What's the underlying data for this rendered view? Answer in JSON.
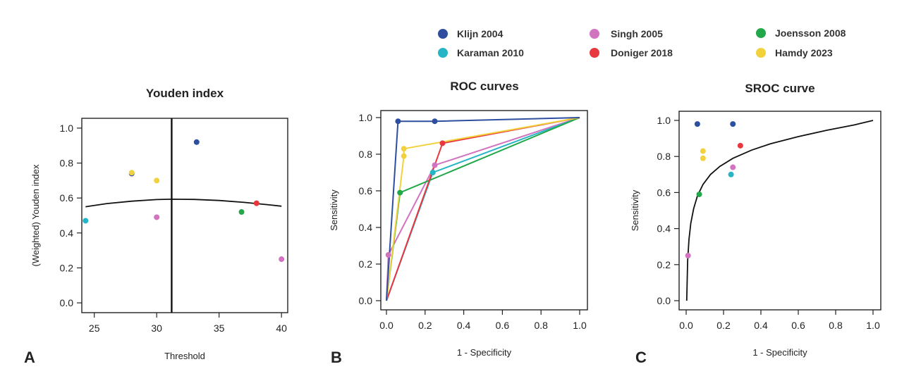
{
  "legend": [
    {
      "name": "Klijn 2004",
      "color": "#2e4ea0"
    },
    {
      "name": "Karaman 2010",
      "color": "#26b5c5"
    },
    {
      "name": "Singh 2005",
      "color": "#d173c0"
    },
    {
      "name": "Doniger 2018",
      "color": "#e8383f"
    },
    {
      "name": "Joensson 2008",
      "color": "#22a84a"
    },
    {
      "name": "Hamdy 2023",
      "color": "#f2d23c"
    }
  ],
  "chart_data": [
    {
      "panel": "A",
      "type": "scatter",
      "title": "Youden index",
      "xlabel": "Threshold",
      "ylabel": "(Weighted) Youden index",
      "xlim": [
        24,
        40.5
      ],
      "ylim": [
        -0.04,
        1.04
      ],
      "xticks": [
        25,
        30,
        35,
        40
      ],
      "yticks": [
        0.0,
        0.2,
        0.4,
        0.6,
        0.8,
        1.0
      ],
      "points": [
        {
          "study": "Klijn 2004",
          "x": 28,
          "y": 0.74
        },
        {
          "study": "Klijn 2004",
          "x": 33.2,
          "y": 0.92
        },
        {
          "study": "Karaman 2010",
          "x": 24.3,
          "y": 0.47
        },
        {
          "study": "Singh 2005",
          "x": 30,
          "y": 0.49
        },
        {
          "study": "Singh 2005",
          "x": 40,
          "y": 0.25
        },
        {
          "study": "Doniger 2018",
          "x": 38,
          "y": 0.57
        },
        {
          "study": "Joensson 2008",
          "x": 36.8,
          "y": 0.52
        },
        {
          "study": "Hamdy 2023",
          "x": 28,
          "y": 0.745
        },
        {
          "study": "Hamdy 2023",
          "x": 30,
          "y": 0.7
        }
      ],
      "fitted_curve": {
        "x": [
          24.3,
          26,
          28,
          30,
          31.2,
          33,
          35,
          37,
          39,
          40
        ],
        "y": [
          0.55,
          0.568,
          0.582,
          0.591,
          0.593,
          0.592,
          0.586,
          0.575,
          0.561,
          0.553
        ]
      },
      "optimal_threshold": 31.2
    },
    {
      "panel": "B",
      "type": "line",
      "title": "ROC curves",
      "xlabel": "1 - Specificity",
      "ylabel": "Sensitivity",
      "xlim": [
        0,
        1
      ],
      "ylim": [
        0,
        1
      ],
      "xticks": [
        0.0,
        0.2,
        0.4,
        0.6,
        0.8,
        1.0
      ],
      "yticks": [
        0.0,
        0.2,
        0.4,
        0.6,
        0.8,
        1.0
      ],
      "series": [
        {
          "name": "Singh 2005",
          "x": [
            0,
            0.01,
            0.25,
            1
          ],
          "y": [
            0,
            0.25,
            0.74,
            1
          ],
          "markers": [
            [
              0.01,
              0.25
            ],
            [
              0.25,
              0.74
            ]
          ]
        },
        {
          "name": "Karaman 2010",
          "x": [
            0,
            0.24,
            1
          ],
          "y": [
            0,
            0.7,
            1
          ],
          "markers": [
            [
              0.24,
              0.7
            ]
          ]
        },
        {
          "name": "Joensson 2008",
          "x": [
            0,
            0.07,
            1
          ],
          "y": [
            0,
            0.59,
            1
          ],
          "markers": [
            [
              0.07,
              0.59
            ]
          ]
        },
        {
          "name": "Doniger 2018",
          "x": [
            0,
            0.29,
            1
          ],
          "y": [
            0,
            0.86,
            1
          ],
          "markers": [
            [
              0.29,
              0.86
            ]
          ]
        },
        {
          "name": "Hamdy 2023",
          "x": [
            0,
            0.09,
            0.09,
            1
          ],
          "y": [
            0,
            0.79,
            0.83,
            1
          ],
          "markers": [
            [
              0.09,
              0.79
            ],
            [
              0.09,
              0.83
            ]
          ]
        },
        {
          "name": "Klijn 2004",
          "x": [
            0,
            0.06,
            0.25,
            1
          ],
          "y": [
            0,
            0.98,
            0.98,
            1
          ],
          "markers": [
            [
              0.06,
              0.98
            ],
            [
              0.25,
              0.98
            ]
          ]
        }
      ]
    },
    {
      "panel": "C",
      "type": "scatter",
      "title": "SROC curve",
      "xlabel": "1 - Specificity",
      "ylabel": "Sensitivity",
      "xlim": [
        0,
        1
      ],
      "ylim": [
        0,
        1
      ],
      "xticks": [
        0.0,
        0.2,
        0.4,
        0.6,
        0.8,
        1.0
      ],
      "yticks": [
        0.0,
        0.2,
        0.4,
        0.6,
        0.8,
        1.0
      ],
      "points": [
        {
          "study": "Klijn 2004",
          "x": 0.06,
          "y": 0.98
        },
        {
          "study": "Klijn 2004",
          "x": 0.25,
          "y": 0.98
        },
        {
          "study": "Karaman 2010",
          "x": 0.24,
          "y": 0.7
        },
        {
          "study": "Singh 2005",
          "x": 0.01,
          "y": 0.25
        },
        {
          "study": "Singh 2005",
          "x": 0.25,
          "y": 0.74
        },
        {
          "study": "Doniger 2018",
          "x": 0.29,
          "y": 0.86
        },
        {
          "study": "Joensson 2008",
          "x": 0.07,
          "y": 0.59
        },
        {
          "study": "Hamdy 2023",
          "x": 0.09,
          "y": 0.79
        },
        {
          "study": "Hamdy 2023",
          "x": 0.09,
          "y": 0.83
        }
      ],
      "sroc_curve": {
        "x": [
          0.003,
          0.008,
          0.015,
          0.025,
          0.04,
          0.06,
          0.09,
          0.13,
          0.18,
          0.25,
          0.35,
          0.45,
          0.6,
          0.75,
          0.9,
          1.0
        ],
        "y": [
          0.0,
          0.22,
          0.34,
          0.43,
          0.51,
          0.58,
          0.645,
          0.7,
          0.745,
          0.79,
          0.835,
          0.87,
          0.91,
          0.945,
          0.975,
          1.0
        ]
      }
    }
  ]
}
